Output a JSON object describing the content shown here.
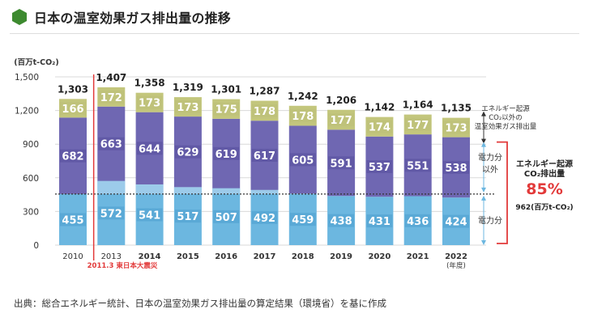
{
  "title": "日本の温室効果ガス排出量の推移",
  "source": "出典：総合エネルギー統計、日本の温室効果ガス排出量の算定結果（環境省）を基に作成",
  "colors": {
    "title_icon": "#3d8a2f",
    "power": "#6cb7e0",
    "power_top": "#9ccbea",
    "non_power": "#6f67b2",
    "non_energy": "#c3c67c",
    "highlight": "#e23a3a",
    "axis_text": "#333333"
  },
  "chart_data": {
    "type": "bar",
    "stacked": true,
    "ylabel": "(百万t-CO₂)",
    "ylim": [
      0,
      1500
    ],
    "yticks": [
      "0",
      "300",
      "600",
      "900",
      "1,200",
      "1,500"
    ],
    "ytick_values": [
      0,
      300,
      600,
      900,
      1200,
      1500
    ],
    "grid": true,
    "categories": [
      "2010",
      "2013",
      "2014",
      "2015",
      "2016",
      "2017",
      "2018",
      "2019",
      "2020",
      "2021",
      "2022"
    ],
    "x_unit": "(年度)",
    "totals": [
      "1,303",
      "1,407",
      "1,358",
      "1,319",
      "1,301",
      "1,287",
      "1,242",
      "1,206",
      "1,142",
      "1,164",
      "1,135"
    ],
    "series": [
      {
        "name": "電力分",
        "values": [
          455,
          572,
          541,
          517,
          507,
          492,
          459,
          438,
          431,
          436,
          424
        ]
      },
      {
        "name": "電力分以外",
        "values": [
          682,
          663,
          644,
          629,
          619,
          617,
          605,
          591,
          537,
          551,
          538
        ]
      },
      {
        "name": "エネルギー起源CO₂以外の温室効果ガス排出量",
        "values": [
          166,
          172,
          173,
          173,
          175,
          178,
          178,
          177,
          174,
          177,
          173
        ]
      }
    ],
    "reference_line": 455,
    "event_line": {
      "after_category": "2010",
      "label": "2011.3 東日本大震災"
    },
    "annotations": {
      "non_energy": "エネルギー起源\nCO₂以外の\n温室効果ガス排出量",
      "non_power": "電力分\n以外",
      "power": "電力分",
      "energy_title": "エネルギー起源\nCO₂排出量",
      "energy_pct": "85%",
      "energy_value": "962(百万t-CO₂)"
    }
  }
}
